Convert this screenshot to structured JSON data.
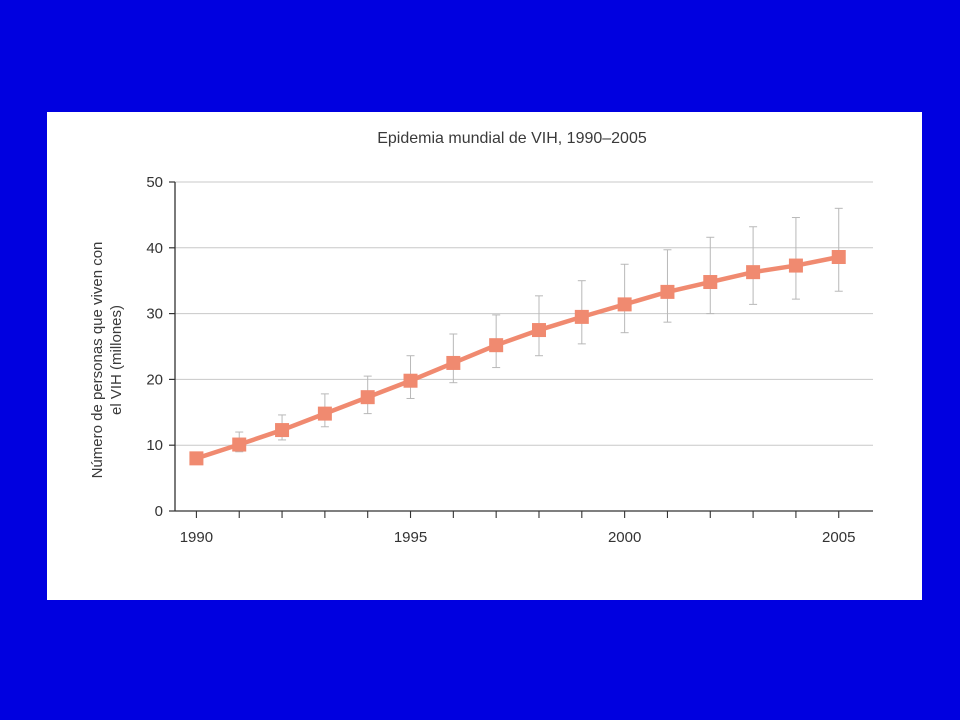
{
  "slide": {
    "background_color": "#0000e0",
    "panel_color": "#ffffff"
  },
  "chart_data": {
    "type": "line",
    "title": "Epidemia mundial de VIH, 1990–2005",
    "xlabel": "",
    "ylabel_line1": "Número de personas que viven con",
    "ylabel_line2": "el VIH  (millones)",
    "xlim": [
      1989.5,
      2005.8
    ],
    "ylim": [
      0,
      50
    ],
    "x_ticks": [
      1990,
      1995,
      2000,
      2005
    ],
    "y_ticks": [
      0,
      10,
      20,
      30,
      40,
      50
    ],
    "grid": "horizontal",
    "series": [
      {
        "color": "#f08a70",
        "x": [
          1990,
          1991,
          1992,
          1993,
          1994,
          1995,
          1996,
          1997,
          1998,
          1999,
          2000,
          2001,
          2002,
          2003,
          2004,
          2005
        ],
        "y": [
          8.0,
          10.1,
          12.3,
          14.8,
          17.3,
          19.8,
          22.5,
          25.2,
          27.5,
          29.5,
          31.4,
          33.3,
          34.8,
          36.3,
          37.3,
          38.6
        ],
        "y_low": [
          7.3,
          9.0,
          10.8,
          12.8,
          14.8,
          17.1,
          19.5,
          21.8,
          23.6,
          25.4,
          27.1,
          28.7,
          30.0,
          31.4,
          32.2,
          33.4
        ],
        "y_high": [
          8.8,
          12.0,
          14.6,
          17.8,
          20.5,
          23.6,
          26.9,
          29.8,
          32.7,
          35.0,
          37.5,
          39.7,
          41.6,
          43.2,
          44.6,
          46.0
        ]
      }
    ]
  }
}
